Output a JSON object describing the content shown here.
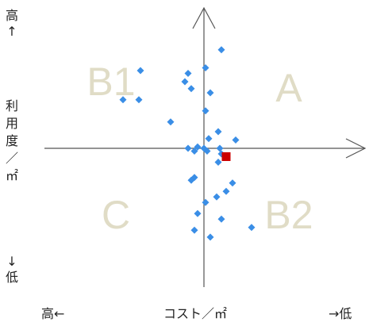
{
  "y_axis": {
    "top_label": "高↑",
    "title_chars": [
      "利",
      "用",
      "度",
      "／",
      "㎡"
    ],
    "bottom_label": "↓低"
  },
  "x_axis": {
    "left_label": "高←",
    "title": "コスト／㎡",
    "right_label": "→低"
  },
  "quadrants": {
    "A": "A",
    "B1": "B1",
    "B2": "B2",
    "C": "C"
  },
  "colors": {
    "point": "#3a8ee6",
    "highlight": "#cc0000",
    "quadrant_label": "#e0dcc6",
    "axis": "#555555"
  },
  "chart_data": {
    "type": "scatter",
    "xlim": [
      -1,
      1
    ],
    "ylim": [
      -1,
      1
    ],
    "x_direction": "cost decreasing to the right",
    "y_direction": "utilization increasing upward",
    "points": [
      {
        "x": 0.11,
        "y": 0.71
      },
      {
        "x": 0.01,
        "y": 0.58
      },
      {
        "x": -0.1,
        "y": 0.54
      },
      {
        "x": -0.12,
        "y": 0.48
      },
      {
        "x": -0.08,
        "y": 0.43
      },
      {
        "x": 0.04,
        "y": 0.4
      },
      {
        "x": -0.4,
        "y": 0.56
      },
      {
        "x": -0.51,
        "y": 0.35
      },
      {
        "x": -0.41,
        "y": 0.35
      },
      {
        "x": 0.01,
        "y": 0.27
      },
      {
        "x": -0.21,
        "y": 0.19
      },
      {
        "x": 0.09,
        "y": 0.12
      },
      {
        "x": 0.03,
        "y": 0.07
      },
      {
        "x": 0.2,
        "y": 0.06
      },
      {
        "x": -0.1,
        "y": 0.0
      },
      {
        "x": -0.04,
        "y": 0.01
      },
      {
        "x": 0.0,
        "y": 0.0
      },
      {
        "x": 0.02,
        "y": -0.02
      },
      {
        "x": 0.1,
        "y": 0.0
      },
      {
        "x": 0.11,
        "y": -0.04
      },
      {
        "x": -0.06,
        "y": -0.02
      },
      {
        "x": 0.09,
        "y": -0.1
      },
      {
        "x": -0.06,
        "y": -0.21
      },
      {
        "x": -0.08,
        "y": -0.23
      },
      {
        "x": 0.18,
        "y": -0.25
      },
      {
        "x": 0.14,
        "y": -0.31
      },
      {
        "x": 0.08,
        "y": -0.35
      },
      {
        "x": 0.01,
        "y": -0.39
      },
      {
        "x": -0.04,
        "y": -0.47
      },
      {
        "x": 0.11,
        "y": -0.51
      },
      {
        "x": 0.3,
        "y": -0.57
      },
      {
        "x": -0.06,
        "y": -0.59
      },
      {
        "x": 0.04,
        "y": -0.64
      }
    ],
    "highlight_points": [
      {
        "x": 0.14,
        "y": -0.06
      }
    ]
  }
}
